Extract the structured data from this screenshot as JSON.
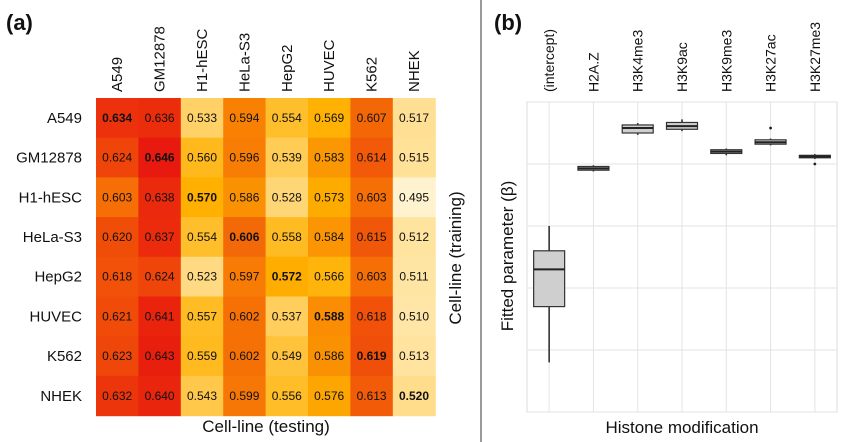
{
  "panels": [
    {
      "id": "a",
      "label": "(a)",
      "chart_data": {
        "type": "heatmap",
        "columns": [
          "A549",
          "GM12878",
          "H1-hESC",
          "HeLa-S3",
          "HepG2",
          "HUVEC",
          "K562",
          "NHEK"
        ],
        "rows": [
          "A549",
          "GM12878",
          "H1-hESC",
          "HeLa-S3",
          "HepG2",
          "HUVEC",
          "K562",
          "NHEK"
        ],
        "values": [
          [
            "0.634",
            "0.636",
            "0.533",
            "0.594",
            "0.554",
            "0.569",
            "0.607",
            "0.517"
          ],
          [
            "0.624",
            "0.646",
            "0.560",
            "0.596",
            "0.539",
            "0.583",
            "0.614",
            "0.515"
          ],
          [
            "0.603",
            "0.638",
            "0.570",
            "0.586",
            "0.528",
            "0.573",
            "0.603",
            "0.495"
          ],
          [
            "0.620",
            "0.637",
            "0.554",
            "0.606",
            "0.558",
            "0.584",
            "0.615",
            "0.512"
          ],
          [
            "0.618",
            "0.624",
            "0.523",
            "0.597",
            "0.572",
            "0.566",
            "0.603",
            "0.511"
          ],
          [
            "0.621",
            "0.641",
            "0.557",
            "0.602",
            "0.537",
            "0.588",
            "0.618",
            "0.510"
          ],
          [
            "0.623",
            "0.643",
            "0.559",
            "0.602",
            "0.549",
            "0.586",
            "0.619",
            "0.513"
          ],
          [
            "0.632",
            "0.640",
            "0.543",
            "0.599",
            "0.556",
            "0.576",
            "0.613",
            "0.520"
          ]
        ],
        "bold_diagonal": true,
        "xlabel": "Cell-line (testing)",
        "ylabel": "Cell-line (training)",
        "color_scale": {
          "min": 0.495,
          "max": 0.646,
          "low": "#fff3cf",
          "mid": "#ffb000",
          "high": "#e8190e"
        }
      }
    },
    {
      "id": "b",
      "label": "(b)",
      "chart_data": {
        "type": "boxplot",
        "categories": [
          "(intercept)",
          "H2A.Z",
          "H3K4me3",
          "H3K9ac",
          "H3K9me3",
          "H3K27ac",
          "H3K27me3"
        ],
        "ylim": [
          -4.5,
          0.5
        ],
        "boxes": [
          {
            "min": -3.7,
            "q1": -2.8,
            "median": -2.2,
            "q3": -1.9,
            "max": -1.5,
            "outliers": []
          },
          {
            "min": -0.62,
            "q1": -0.6,
            "median": -0.57,
            "q3": -0.54,
            "max": -0.52,
            "outliers": []
          },
          {
            "min": -0.03,
            "q1": 0.0,
            "median": 0.08,
            "q3": 0.13,
            "max": 0.16,
            "outliers": []
          },
          {
            "min": 0.03,
            "q1": 0.06,
            "median": 0.11,
            "q3": 0.17,
            "max": 0.22,
            "outliers": []
          },
          {
            "min": -0.36,
            "q1": -0.33,
            "median": -0.3,
            "q3": -0.27,
            "max": -0.25,
            "outliers": []
          },
          {
            "min": -0.2,
            "q1": -0.18,
            "median": -0.15,
            "q3": -0.11,
            "max": -0.09,
            "outliers": [
              0.08
            ]
          },
          {
            "min": -0.42,
            "q1": -0.4,
            "median": -0.38,
            "q3": -0.36,
            "max": -0.34,
            "outliers": [
              -0.5
            ]
          }
        ],
        "xlabel": "Histone modification",
        "ylabel": "Fitted parameter (β)",
        "grid": true
      }
    }
  ]
}
